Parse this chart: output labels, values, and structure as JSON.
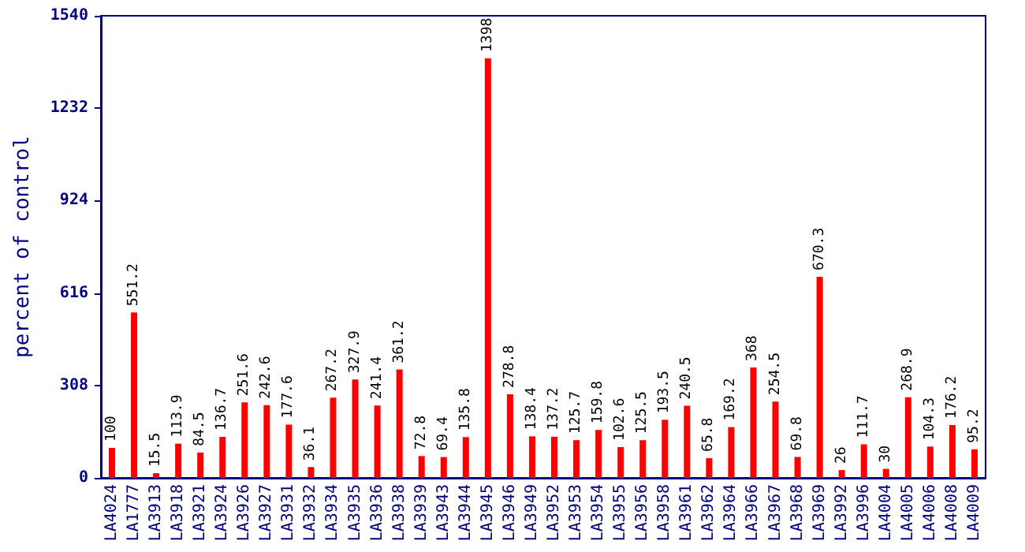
{
  "chart_data": {
    "type": "bar",
    "ylabel": "percent of control",
    "categories": [
      "LA4024",
      "LA1777",
      "LA3913",
      "LA3918",
      "LA3921",
      "LA3924",
      "LA3926",
      "LA3927",
      "LA3931",
      "LA3932",
      "LA3934",
      "LA3935",
      "LA3936",
      "LA3938",
      "LA3939",
      "LA3943",
      "LA3944",
      "LA3945",
      "LA3946",
      "LA3949",
      "LA3952",
      "LA3953",
      "LA3954",
      "LA3955",
      "LA3956",
      "LA3958",
      "LA3961",
      "LA3962",
      "LA3964",
      "LA3966",
      "LA3967",
      "LA3968",
      "LA3969",
      "LA3992",
      "LA3996",
      "LA4004",
      "LA4005",
      "LA4006",
      "LA4008",
      "LA4009"
    ],
    "values": [
      100,
      551.2,
      15.5,
      113.9,
      84.5,
      136.7,
      251.6,
      242.6,
      177.6,
      36.1,
      267.2,
      327.9,
      241.4,
      361.2,
      72.8,
      69.4,
      135.8,
      1398,
      278.8,
      138.4,
      137.2,
      125.7,
      159.8,
      102.6,
      125.5,
      193.5,
      240.5,
      65.8,
      169.2,
      368,
      254.5,
      69.8,
      670.3,
      26,
      111.7,
      30,
      268.9,
      104.3,
      176.2,
      95.2
    ],
    "color": "#ff0000",
    "ylim": [
      0,
      1540
    ],
    "yticks": [
      0,
      308,
      616,
      924,
      1232,
      1540
    ],
    "grid": false,
    "data_labels": true
  }
}
